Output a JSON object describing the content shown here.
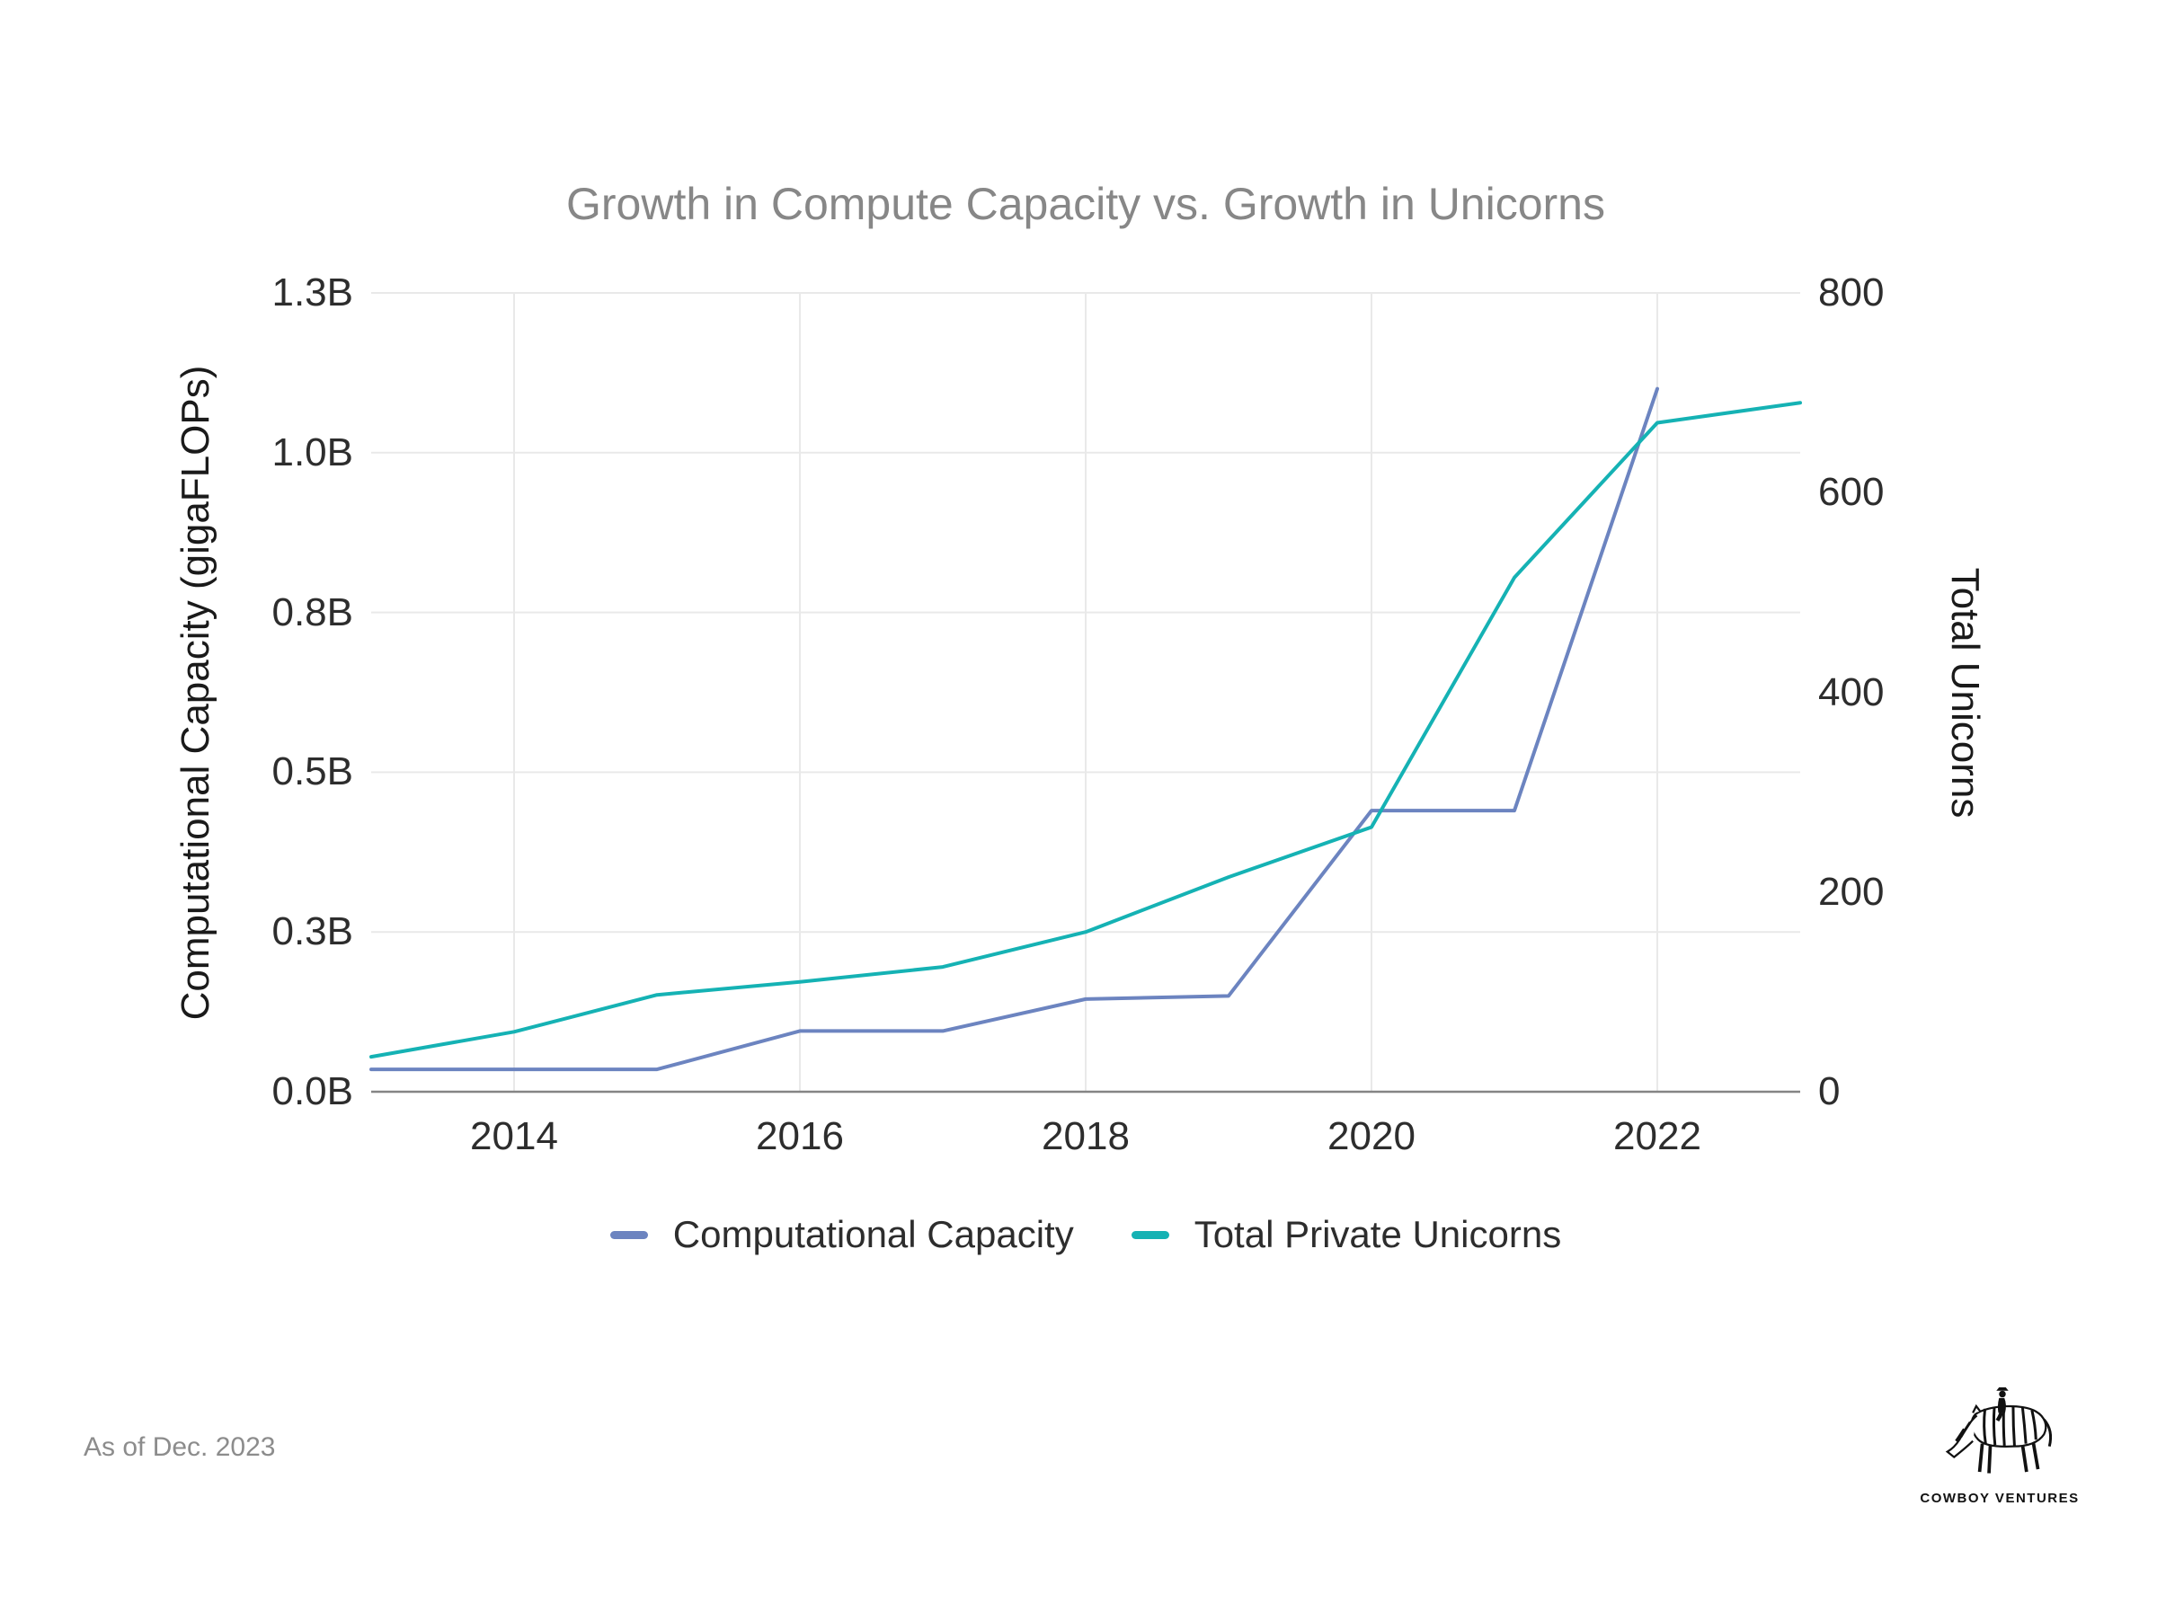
{
  "title": "Growth in Compute Capacity vs. Growth in Unicorns",
  "footnote": "As of Dec. 2023",
  "logo": {
    "text": "COWBOY VENTURES",
    "icon": "zebra-with-cowboy-rider-icon"
  },
  "colors": {
    "computational_capacity_line": "#6c84c0",
    "total_private_unicorns_line": "#15b2b4",
    "title_text": "#878787",
    "tick_text": "#2d2d2d",
    "axis_title_text": "#1a1a1a",
    "gridline": "#e9e9e9",
    "axis_line": "#858585",
    "footnote_text": "#8c8c8c"
  },
  "chart_data": {
    "type": "line",
    "title": "Growth in Compute Capacity vs. Growth in Unicorns",
    "grid": true,
    "legend_position": "bottom-center",
    "x_axis": {
      "range": [
        2013,
        2023
      ],
      "ticks": [
        2014,
        2016,
        2018,
        2020,
        2022
      ]
    },
    "y_axis_left": {
      "label": "Computational Capacity (gigaFLOPs)",
      "units": "billions of gigaFLOPs",
      "range_B": [
        0,
        1.25
      ],
      "tick_values_B": [
        0,
        0.25,
        0.5,
        0.75,
        1.0,
        1.25
      ],
      "tick_labels": [
        "0.0B",
        "0.3B",
        "0.5B",
        "0.8B",
        "1.0B",
        "1.3B"
      ]
    },
    "y_axis_right": {
      "label": "Total Unicorns",
      "range": [
        0,
        800
      ],
      "tick_values": [
        0,
        200,
        400,
        600,
        800
      ]
    },
    "series": [
      {
        "name": "Computational Capacity",
        "axis": "left",
        "color": "#6c84c0",
        "x": [
          2013,
          2014,
          2015,
          2016,
          2017,
          2018,
          2019,
          2020,
          2021,
          2022
        ],
        "values_B": [
          0.035,
          0.035,
          0.035,
          0.095,
          0.095,
          0.145,
          0.15,
          0.44,
          0.44,
          1.1
        ]
      },
      {
        "name": "Total Private Unicorns",
        "axis": "right",
        "color": "#15b2b4",
        "x": [
          2013,
          2014,
          2015,
          2016,
          2017,
          2018,
          2019,
          2020,
          2021,
          2022,
          2023
        ],
        "values": [
          35,
          60,
          97,
          110,
          125,
          160,
          215,
          265,
          515,
          670,
          690
        ]
      }
    ]
  }
}
